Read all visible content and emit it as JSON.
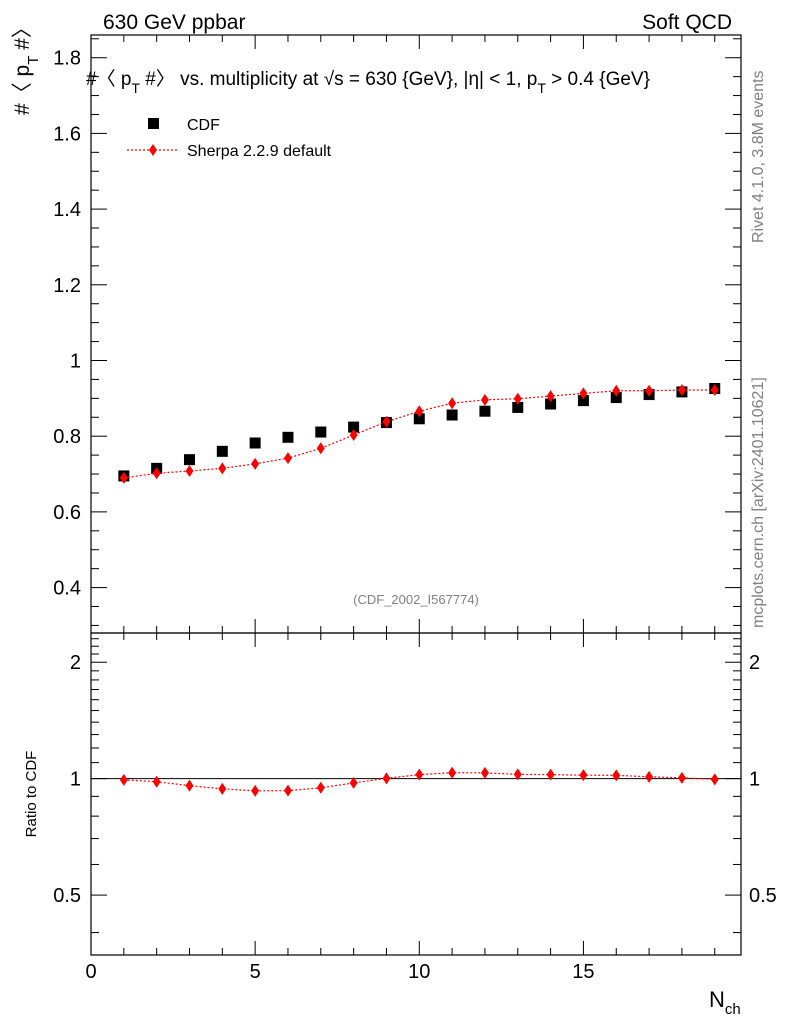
{
  "header": {
    "left": "630 GeV ppbar",
    "right": "Soft QCD"
  },
  "side_labels": {
    "rivet": "Rivet 4.1.0,  3.8M events",
    "mcplots": "mcplots.cern.ch [arXiv:2401.10621]"
  },
  "watermark": "(CDF_2002_I567774)",
  "colors": {
    "mc": "#ff0000",
    "data": "#000000"
  },
  "chart_data": {
    "type": "scatter",
    "title": "#〈 p_T #〉 vs. multiplicity at √s = 630 {GeV}, |η| < 1, p_T > 0.4 {GeV}",
    "title_parts": {
      "a": "#〈 p",
      "a_sub": "T",
      "b": " #〉 vs. multiplicity at ",
      "sqrt": "√",
      "c": "s = 630 {GeV}, |η| < 1, p",
      "c_sub": "T",
      "d": " > 0.4 {GeV}"
    },
    "ylabel_parts": {
      "a": "#〈 p",
      "sub": "T",
      "b": " #〉"
    },
    "xlabel_parts": {
      "a": "N",
      "sub": "ch"
    },
    "ratio_ylabel": "Ratio to CDF",
    "xlim": [
      0,
      19.8
    ],
    "ylim": [
      0.28,
      1.86
    ],
    "ratio_ylim": [
      0.35,
      2.38
    ],
    "x_ticks": [
      0,
      5,
      10,
      15
    ],
    "x_tick_labels": [
      "0",
      "5",
      "10",
      "15"
    ],
    "y_ticks": [
      0.4,
      0.6,
      0.8,
      1.0,
      1.2,
      1.4,
      1.6,
      1.8
    ],
    "y_tick_labels": [
      "0.4",
      "0.6",
      "0.8",
      "1",
      "1.2",
      "1.4",
      "1.6",
      "1.8"
    ],
    "ratio_ticks": [
      0.5,
      1,
      2
    ],
    "ratio_tick_labels": [
      "0.5",
      "1",
      "2"
    ],
    "legend": [
      "CDF",
      "Sherpa 2.2.9 default"
    ],
    "legend_position": "top-left",
    "x": [
      1,
      2,
      3,
      4,
      5,
      6,
      7,
      8,
      9,
      10,
      11,
      12,
      13,
      14,
      15,
      16,
      17,
      18,
      19
    ],
    "series": [
      {
        "name": "CDF",
        "values": [
          0.695,
          0.715,
          0.738,
          0.76,
          0.782,
          0.797,
          0.811,
          0.824,
          0.836,
          0.846,
          0.856,
          0.866,
          0.876,
          0.885,
          0.894,
          0.902,
          0.91,
          0.917,
          0.926
        ]
      },
      {
        "name": "Sherpa 2.2.9 default",
        "values": [
          0.69,
          0.702,
          0.708,
          0.715,
          0.727,
          0.742,
          0.768,
          0.803,
          0.838,
          0.866,
          0.887,
          0.896,
          0.899,
          0.906,
          0.913,
          0.92,
          0.92,
          0.922,
          0.922
        ]
      }
    ],
    "ratio": [
      0.993,
      0.982,
      0.959,
      0.941,
      0.93,
      0.931,
      0.947,
      0.975,
      1.002,
      1.024,
      1.036,
      1.035,
      1.026,
      1.024,
      1.021,
      1.02,
      1.011,
      1.005,
      0.996
    ]
  }
}
